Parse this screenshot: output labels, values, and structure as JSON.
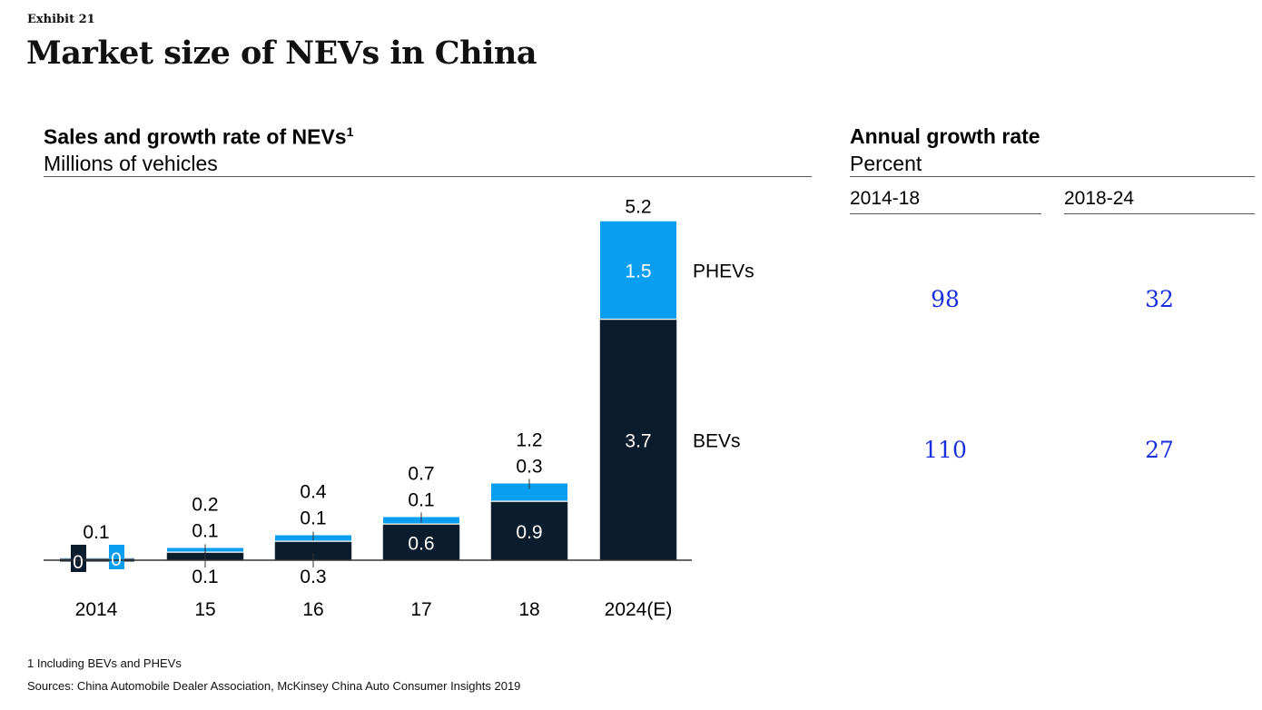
{
  "exhibit_label": "Exhibit 21",
  "title": "Market size of NEVs in China",
  "left_panel": {
    "title": "Sales and growth rate of NEVs",
    "title_sup": "1",
    "subtitle": "Millions of vehicles"
  },
  "right_panel": {
    "title": "Annual growth rate",
    "subtitle": "Percent",
    "columns": [
      "2014-18",
      "2018-24"
    ],
    "rows": [
      {
        "series": "PHEVs",
        "values": [
          "98",
          "32"
        ]
      },
      {
        "series": "BEVs",
        "values": [
          "110",
          "27"
        ]
      }
    ]
  },
  "colors": {
    "bev": "#0b1c2c",
    "phev": "#0a9ef0",
    "growth_text": "#1a2fdc"
  },
  "chart_data": {
    "type": "bar",
    "stacked": true,
    "title": "Sales and growth rate of NEVs",
    "ylabel": "Millions of vehicles",
    "xlabel": "",
    "ylim": [
      0,
      5.2
    ],
    "grid": false,
    "categories": [
      "2014",
      "15",
      "16",
      "17",
      "18",
      "2024(E)"
    ],
    "series": [
      {
        "name": "BEVs",
        "values": [
          0,
          0.1,
          0.3,
          0.6,
          0.9,
          3.7
        ],
        "labels": [
          "0",
          "0.1",
          "0.3",
          "0.6",
          "0.9",
          "3.7"
        ]
      },
      {
        "name": "PHEVs",
        "values": [
          0,
          0.1,
          0.1,
          0.1,
          0.3,
          1.5
        ],
        "labels": [
          "0",
          "0.1",
          "0.1",
          "0.1",
          "0.3",
          "1.5"
        ]
      }
    ],
    "totals": [
      "0.1",
      "0.2",
      "0.4",
      "0.7",
      "1.2",
      "5.2"
    ],
    "legend": [
      "PHEVs",
      "BEVs"
    ],
    "legend_placement": "right-of-last-bar"
  },
  "footnotes": [
    "1 Including BEVs and PHEVs",
    "Sources: China Automobile Dealer Association, McKinsey China Auto Consumer Insights 2019"
  ]
}
